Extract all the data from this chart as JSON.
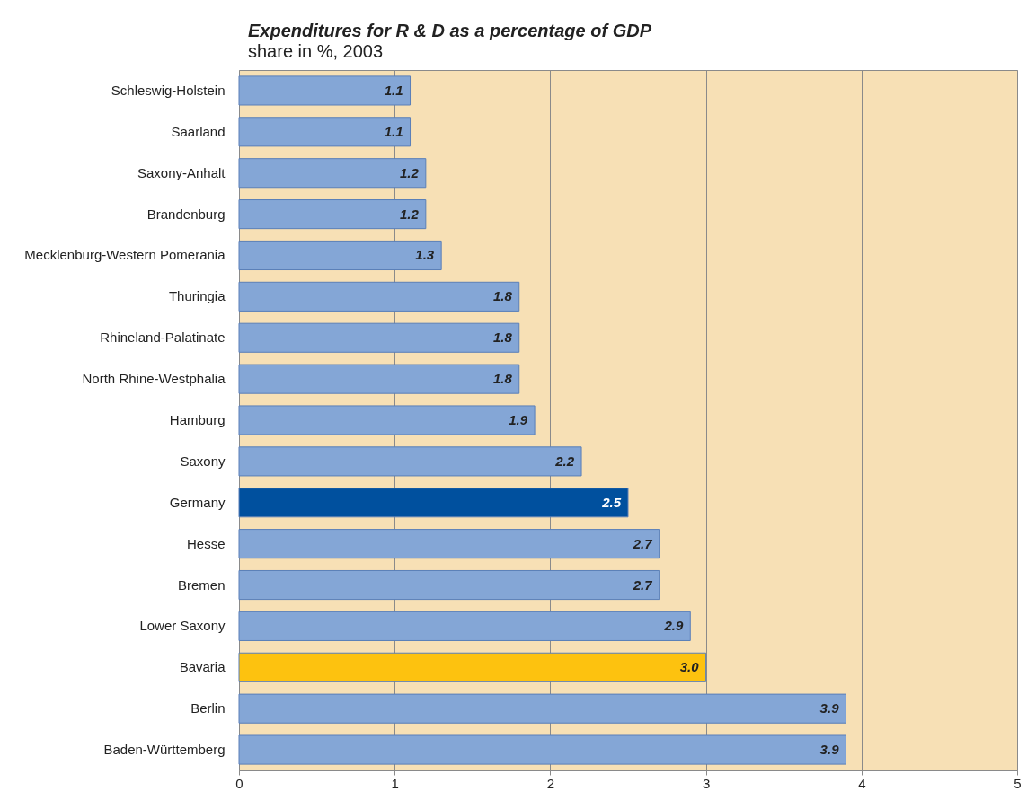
{
  "chart_data": {
    "type": "bar",
    "orientation": "horizontal",
    "title": "Expenditures for R & D as a percentage of GDP",
    "subtitle": "share in %, 2003",
    "categories": [
      "Schleswig-Holstein",
      "Saarland",
      "Saxony-Anhalt",
      "Brandenburg",
      "Mecklenburg-Western Pomerania",
      "Thuringia",
      "Rhineland-Palatinate",
      "North Rhine-Westphalia",
      "Hamburg",
      "Saxony",
      "Germany",
      "Hesse",
      "Bremen",
      "Lower Saxony",
      "Bavaria",
      "Berlin",
      "Baden-Württemberg"
    ],
    "values": [
      1.1,
      1.1,
      1.2,
      1.2,
      1.3,
      1.8,
      1.8,
      1.8,
      1.9,
      2.2,
      2.5,
      2.7,
      2.7,
      2.9,
      3.0,
      3.9,
      3.9
    ],
    "colors": [
      "#84a6d6",
      "#84a6d6",
      "#84a6d6",
      "#84a6d6",
      "#84a6d6",
      "#84a6d6",
      "#84a6d6",
      "#84a6d6",
      "#84a6d6",
      "#84a6d6",
      "#00509e",
      "#84a6d6",
      "#84a6d6",
      "#84a6d6",
      "#fdc20f",
      "#84a6d6",
      "#84a6d6"
    ],
    "value_labels": [
      "1.1",
      "1.1",
      "1.2",
      "1.2",
      "1.3",
      "1.8",
      "1.8",
      "1.8",
      "1.9",
      "2.2",
      "2.5",
      "2.7",
      "2.7",
      "2.9",
      "3.0",
      "3.9",
      "3.9"
    ],
    "xlim": [
      0,
      5
    ],
    "xticks": [
      0,
      1,
      2,
      3,
      4,
      5
    ],
    "grid": "x",
    "legend": false
  }
}
